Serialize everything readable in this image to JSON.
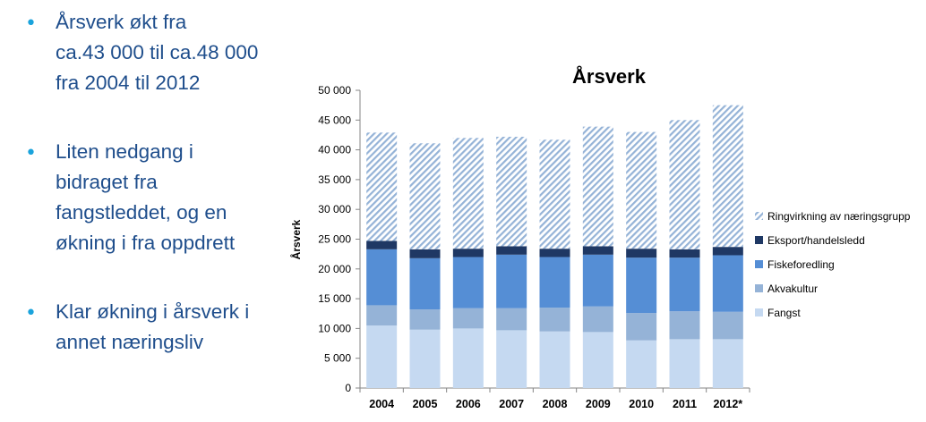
{
  "bullets": [
    {
      "text": "Årsverk økt fra\nca.43 000 til ca.48 000\nfra 2004 til 2012"
    },
    {
      "text": "Liten nedgang i\nbidraget fra\nfangstleddet, og en\nøkning i fra oppdrett"
    },
    {
      "text": "Klar økning i årsverk i\nannet næringsliv"
    }
  ],
  "bullet_color": "#1aa3dc",
  "text_color": "#1f4e8c",
  "chart_data": {
    "type": "bar",
    "stacked": true,
    "title": "Årsverk",
    "xlabel": "",
    "ylabel": "Årsverk",
    "ylim": [
      0,
      50000
    ],
    "yticks": [
      0,
      5000,
      10000,
      15000,
      20000,
      25000,
      30000,
      35000,
      40000,
      45000,
      50000
    ],
    "ytick_labels": [
      "0",
      "5 000",
      "10 000",
      "15 000",
      "20 000",
      "25 000",
      "30 000",
      "35 000",
      "40 000",
      "45 000",
      "50 000"
    ],
    "grid": false,
    "legend_position": "right",
    "categories": [
      "2004",
      "2005",
      "2006",
      "2007",
      "2008",
      "2009",
      "2010",
      "2011",
      "2012*"
    ],
    "series": [
      {
        "name": "Fangst",
        "color": "#c5d9f1",
        "pattern": "solid",
        "values": [
          10500,
          9800,
          10000,
          9700,
          9500,
          9400,
          8000,
          8200,
          8200
        ]
      },
      {
        "name": "Akvakultur",
        "color": "#95b3d7",
        "pattern": "solid",
        "values": [
          3400,
          3400,
          3400,
          3700,
          4000,
          4300,
          4600,
          4700,
          4600
        ]
      },
      {
        "name": "Fiskeforedling",
        "color": "#558ed5",
        "pattern": "solid",
        "values": [
          9400,
          8600,
          8600,
          9000,
          8500,
          8700,
          9300,
          9000,
          9500
        ]
      },
      {
        "name": "Eksport/handelsledd",
        "color": "#1f3864",
        "pattern": "solid",
        "values": [
          1400,
          1500,
          1400,
          1400,
          1400,
          1400,
          1500,
          1400,
          1400
        ]
      },
      {
        "name": "Ringvirkning av næringsgrupp",
        "color": "#95b3d7",
        "pattern": "hatched",
        "values": [
          18200,
          17800,
          18600,
          18400,
          18300,
          20100,
          19600,
          21700,
          23800
        ]
      }
    ]
  }
}
